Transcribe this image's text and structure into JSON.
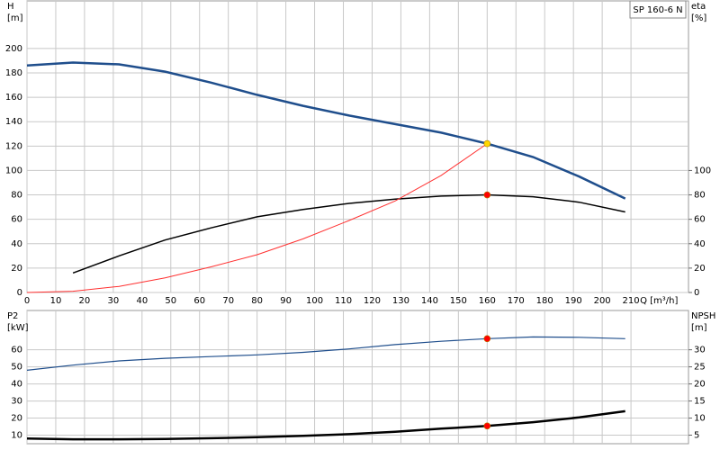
{
  "chart_data": [
    {
      "type": "line",
      "title": "SP 160-6 N",
      "y_label": [
        "H",
        "[m]"
      ],
      "y2_label": [
        "eta",
        "[%]"
      ],
      "x_label": "Q [m³/h]",
      "x": [
        0,
        16,
        32,
        48,
        64,
        80,
        96,
        112,
        128,
        144,
        160,
        176,
        192,
        208
      ],
      "xlim": [
        0,
        230
      ],
      "xticks": [
        0,
        10,
        20,
        30,
        40,
        50,
        60,
        70,
        80,
        90,
        100,
        110,
        120,
        130,
        140,
        150,
        160,
        170,
        180,
        190,
        200,
        210
      ],
      "show_xtick_labels": true,
      "ylim": [
        0,
        239
      ],
      "yticks": [
        0,
        20,
        40,
        60,
        80,
        100,
        120,
        140,
        160,
        180,
        200
      ],
      "y2lim": [
        0,
        239
      ],
      "y2ticks": [
        0,
        20,
        40,
        60,
        80,
        100
      ],
      "grid": true,
      "series": [
        {
          "color": "#1f4e8c",
          "width": 2.5,
          "values": [
            186,
            188.5,
            187,
            181,
            172,
            162,
            153,
            145,
            138,
            131,
            122,
            111,
            95,
            77
          ]
        },
        {
          "color": "#000000",
          "width": 1.5,
          "axis": "y2",
          "values": [
            null,
            16,
            30,
            43,
            53,
            62,
            68,
            73,
            76.5,
            79,
            80,
            78.5,
            74,
            66
          ]
        },
        {
          "color": "#ff3030",
          "width": 1,
          "values": [
            0,
            1,
            5,
            12,
            21,
            31,
            44,
            59,
            75,
            96,
            122,
            null,
            null,
            null
          ]
        }
      ],
      "points": [
        {
          "x": 160,
          "y": 122,
          "color": "#ffd700"
        },
        {
          "x": 160,
          "y": 80,
          "color": "#ff0000",
          "axis": "y2"
        }
      ]
    },
    {
      "type": "line",
      "y_label": [
        "P2",
        "[kW]"
      ],
      "y2_label": [
        "NPSH",
        "[m]"
      ],
      "x": [
        0,
        16,
        32,
        48,
        64,
        80,
        96,
        112,
        128,
        144,
        160,
        176,
        192,
        208
      ],
      "xlim": [
        0,
        230
      ],
      "xticks": [
        0,
        10,
        20,
        30,
        40,
        50,
        60,
        70,
        80,
        90,
        100,
        110,
        120,
        130,
        140,
        150,
        160,
        170,
        180,
        190,
        200,
        210
      ],
      "show_xtick_labels": false,
      "ylim": [
        5,
        83
      ],
      "yticks": [
        10,
        20,
        30,
        40,
        50,
        60
      ],
      "y2lim": [
        2.5,
        41.5
      ],
      "y2ticks": [
        5,
        10,
        15,
        20,
        25,
        30
      ],
      "grid": true,
      "series": [
        {
          "color": "#1f4e8c",
          "width": 1.2,
          "values": [
            48,
            51,
            53.5,
            55,
            56,
            57,
            58.5,
            60.5,
            63,
            65,
            66.5,
            67.5,
            67.3,
            66.5
          ]
        },
        {
          "color": "#000000",
          "width": 2.5,
          "axis": "y2",
          "values": [
            4,
            3.8,
            3.8,
            3.9,
            4.1,
            4.4,
            4.8,
            5.3,
            6,
            6.9,
            7.7,
            8.8,
            10.2,
            12
          ]
        }
      ],
      "points": [
        {
          "x": 160,
          "y": 66.5,
          "color": "#ff0000"
        },
        {
          "x": 160,
          "y": 7.7,
          "color": "#ff0000",
          "axis": "y2"
        }
      ]
    }
  ]
}
